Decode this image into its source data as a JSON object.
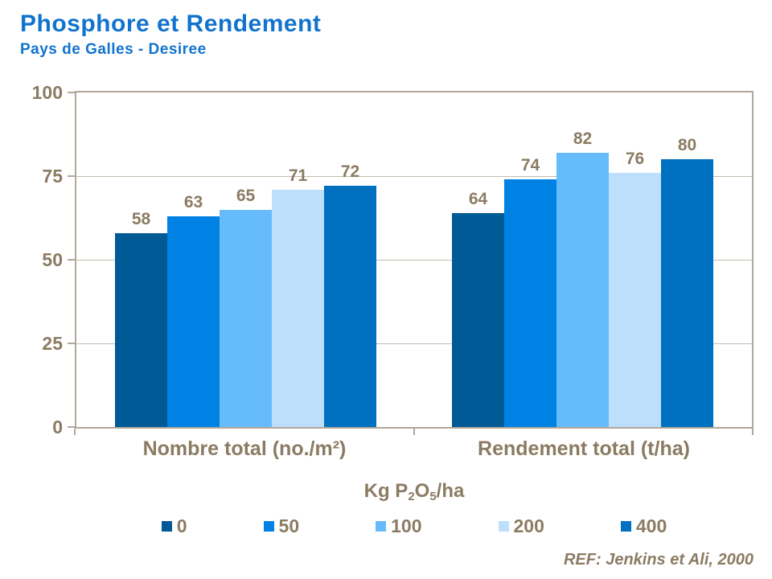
{
  "header": {
    "title": "Phosphore et Rendement",
    "subtitle": "Pays de Galles - Desiree"
  },
  "footer": {
    "reference": "REF: Jenkins et Ali, 2000"
  },
  "legend": {
    "title_parts": {
      "p1": "Kg P",
      "sub1": "2",
      "p2": "O",
      "sub2": "5",
      "p3": "/ha"
    }
  },
  "chart_data": {
    "type": "bar",
    "title": "Phosphore et Rendement",
    "subtitle": "Pays de Galles - Desiree",
    "categories": [
      "Nombre total (no./m²)",
      "Rendement total (t/ha)"
    ],
    "series": [
      {
        "name": "0",
        "color": "#005A96",
        "values": [
          58,
          64
        ]
      },
      {
        "name": "50",
        "color": "#0082E5",
        "values": [
          63,
          74
        ]
      },
      {
        "name": "100",
        "color": "#66BBFA",
        "values": [
          65,
          82
        ]
      },
      {
        "name": "200",
        "color": "#BDDFFB",
        "values": [
          71,
          76
        ]
      },
      {
        "name": "400",
        "color": "#0070C0",
        "values": [
          72,
          80
        ]
      }
    ],
    "ylim": [
      0,
      100
    ],
    "yticks": [
      0,
      25,
      50,
      75,
      100
    ],
    "grid": "horizontal",
    "legend_title": "Kg P2O5/ha",
    "legend_position": "bottom",
    "value_labels": true,
    "reference": "REF: Jenkins et Ali, 2000"
  },
  "colors": {
    "title_blue": "#1173CE",
    "axis_text_brown": "#8B7B62",
    "plot_border": "#B0A89A",
    "gridline": "#C4BCAE",
    "background": "#FFFFFF"
  }
}
